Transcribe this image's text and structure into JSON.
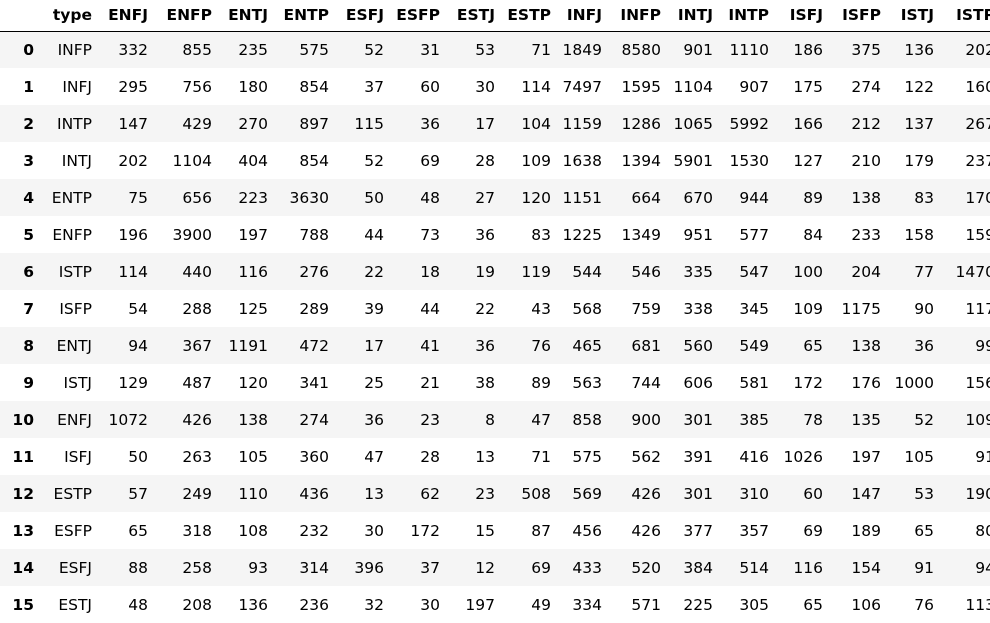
{
  "table": {
    "index_header": "",
    "columns": [
      "type",
      "ENFJ",
      "ENFP",
      "ENTJ",
      "ENTP",
      "ESFJ",
      "ESFP",
      "ESTJ",
      "ESTP",
      "INFJ",
      "INFP",
      "INTJ",
      "INTP",
      "ISFJ",
      "ISFP",
      "ISTJ",
      "ISTP"
    ],
    "rows": [
      {
        "index": "0",
        "cells": [
          "INFP",
          "332",
          "855",
          "235",
          "575",
          "52",
          "31",
          "53",
          "71",
          "1849",
          "8580",
          "901",
          "1110",
          "186",
          "375",
          "136",
          "202"
        ]
      },
      {
        "index": "1",
        "cells": [
          "INFJ",
          "295",
          "756",
          "180",
          "854",
          "37",
          "60",
          "30",
          "114",
          "7497",
          "1595",
          "1104",
          "907",
          "175",
          "274",
          "122",
          "160"
        ]
      },
      {
        "index": "2",
        "cells": [
          "INTP",
          "147",
          "429",
          "270",
          "897",
          "115",
          "36",
          "17",
          "104",
          "1159",
          "1286",
          "1065",
          "5992",
          "166",
          "212",
          "137",
          "267"
        ]
      },
      {
        "index": "3",
        "cells": [
          "INTJ",
          "202",
          "1104",
          "404",
          "854",
          "52",
          "69",
          "28",
          "109",
          "1638",
          "1394",
          "5901",
          "1530",
          "127",
          "210",
          "179",
          "237"
        ]
      },
      {
        "index": "4",
        "cells": [
          "ENTP",
          "75",
          "656",
          "223",
          "3630",
          "50",
          "48",
          "27",
          "120",
          "1151",
          "664",
          "670",
          "944",
          "89",
          "138",
          "83",
          "170"
        ]
      },
      {
        "index": "5",
        "cells": [
          "ENFP",
          "196",
          "3900",
          "197",
          "788",
          "44",
          "73",
          "36",
          "83",
          "1225",
          "1349",
          "951",
          "577",
          "84",
          "233",
          "158",
          "159"
        ]
      },
      {
        "index": "6",
        "cells": [
          "ISTP",
          "114",
          "440",
          "116",
          "276",
          "22",
          "18",
          "19",
          "119",
          "544",
          "546",
          "335",
          "547",
          "100",
          "204",
          "77",
          "1470"
        ]
      },
      {
        "index": "7",
        "cells": [
          "ISFP",
          "54",
          "288",
          "125",
          "289",
          "39",
          "44",
          "22",
          "43",
          "568",
          "759",
          "338",
          "345",
          "109",
          "1175",
          "90",
          "117"
        ]
      },
      {
        "index": "8",
        "cells": [
          "ENTJ",
          "94",
          "367",
          "1191",
          "472",
          "17",
          "41",
          "36",
          "76",
          "465",
          "681",
          "560",
          "549",
          "65",
          "138",
          "36",
          "99"
        ]
      },
      {
        "index": "9",
        "cells": [
          "ISTJ",
          "129",
          "487",
          "120",
          "341",
          "25",
          "21",
          "38",
          "89",
          "563",
          "744",
          "606",
          "581",
          "172",
          "176",
          "1000",
          "156"
        ]
      },
      {
        "index": "10",
        "cells": [
          "ENFJ",
          "1072",
          "426",
          "138",
          "274",
          "36",
          "23",
          "8",
          "47",
          "858",
          "900",
          "301",
          "385",
          "78",
          "135",
          "52",
          "109"
        ]
      },
      {
        "index": "11",
        "cells": [
          "ISFJ",
          "50",
          "263",
          "105",
          "360",
          "47",
          "28",
          "13",
          "71",
          "575",
          "562",
          "391",
          "416",
          "1026",
          "197",
          "105",
          "91"
        ]
      },
      {
        "index": "12",
        "cells": [
          "ESTP",
          "57",
          "249",
          "110",
          "436",
          "13",
          "62",
          "23",
          "508",
          "569",
          "426",
          "301",
          "310",
          "60",
          "147",
          "53",
          "190"
        ]
      },
      {
        "index": "13",
        "cells": [
          "ESFP",
          "65",
          "318",
          "108",
          "232",
          "30",
          "172",
          "15",
          "87",
          "456",
          "426",
          "377",
          "357",
          "69",
          "189",
          "65",
          "80"
        ]
      },
      {
        "index": "14",
        "cells": [
          "ESFJ",
          "88",
          "258",
          "93",
          "314",
          "396",
          "37",
          "12",
          "69",
          "433",
          "520",
          "384",
          "514",
          "116",
          "154",
          "91",
          "94"
        ]
      },
      {
        "index": "15",
        "cells": [
          "ESTJ",
          "48",
          "208",
          "136",
          "236",
          "32",
          "30",
          "197",
          "49",
          "334",
          "571",
          "225",
          "305",
          "65",
          "106",
          "76",
          "113"
        ]
      }
    ]
  }
}
